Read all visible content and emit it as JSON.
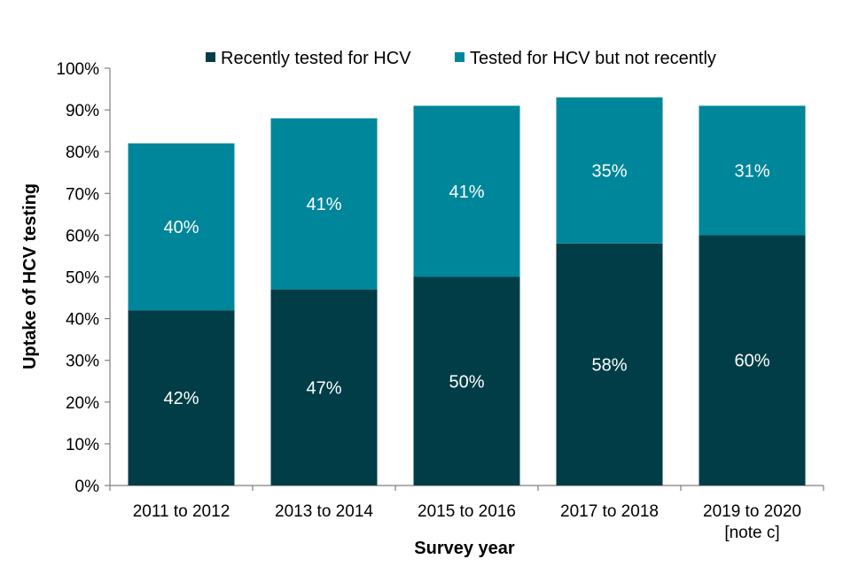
{
  "chart_data": {
    "type": "bar",
    "stacked": true,
    "title": "",
    "xlabel": "Survey year",
    "ylabel": "Uptake of HCV testing",
    "ylim": [
      0,
      100
    ],
    "ytick_step": 10,
    "ytick_labels": [
      "0%",
      "10%",
      "20%",
      "30%",
      "40%",
      "50%",
      "60%",
      "70%",
      "80%",
      "90%",
      "100%"
    ],
    "categories": [
      [
        "2011 to 2012"
      ],
      [
        "2013 to 2014"
      ],
      [
        "2015 to 2016"
      ],
      [
        "2017 to 2018"
      ],
      [
        "2019 to 2020",
        "[note c]"
      ]
    ],
    "series": [
      {
        "name": "Recently tested for HCV",
        "color": "#003d47",
        "values": [
          42,
          47,
          50,
          58,
          60
        ],
        "labels": [
          "42%",
          "47%",
          "50%",
          "58%",
          "60%"
        ]
      },
      {
        "name": "Tested for HCV but not recently",
        "color": "#00869a",
        "values": [
          40,
          41,
          41,
          35,
          31
        ],
        "labels": [
          "40%",
          "41%",
          "41%",
          "35%",
          "31%"
        ]
      }
    ],
    "legend_position": "top",
    "grid": false
  }
}
